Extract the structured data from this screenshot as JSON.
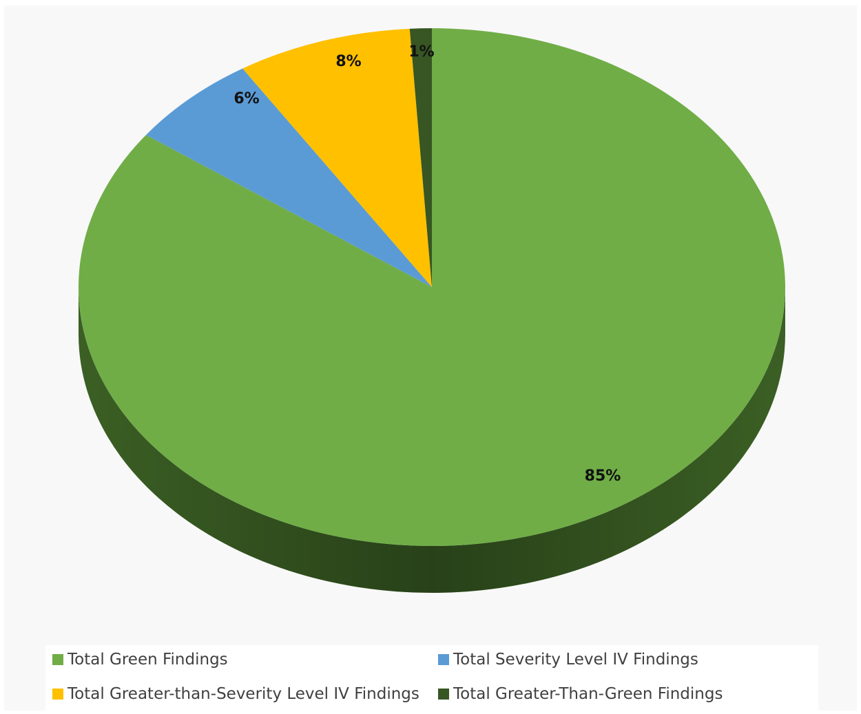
{
  "chart_data": {
    "type": "pie",
    "style": "3d",
    "start_angle_deg": 0,
    "direction": "clockwise",
    "title": "",
    "slices": [
      {
        "name": "Total Green Findings",
        "value": 85,
        "label": "85%",
        "color": "#70ad47",
        "side_color": "#3e6426"
      },
      {
        "name": "Total Severity Level IV Findings",
        "value": 6,
        "label": "6%",
        "color": "#5b9bd5",
        "side_color": "#2e5b84"
      },
      {
        "name": "Total Greater-than-Severity Level IV Findings",
        "value": 8,
        "label": "8%",
        "color": "#ffc000",
        "side_color": "#a07800"
      },
      {
        "name": "Total Greater-Than-Green Findings",
        "value": 1,
        "label": "1%",
        "color": "#375623",
        "side_color": "#1f3313"
      }
    ],
    "legend": {
      "placement": "bottom",
      "order": [
        0,
        1,
        2,
        3
      ]
    }
  }
}
